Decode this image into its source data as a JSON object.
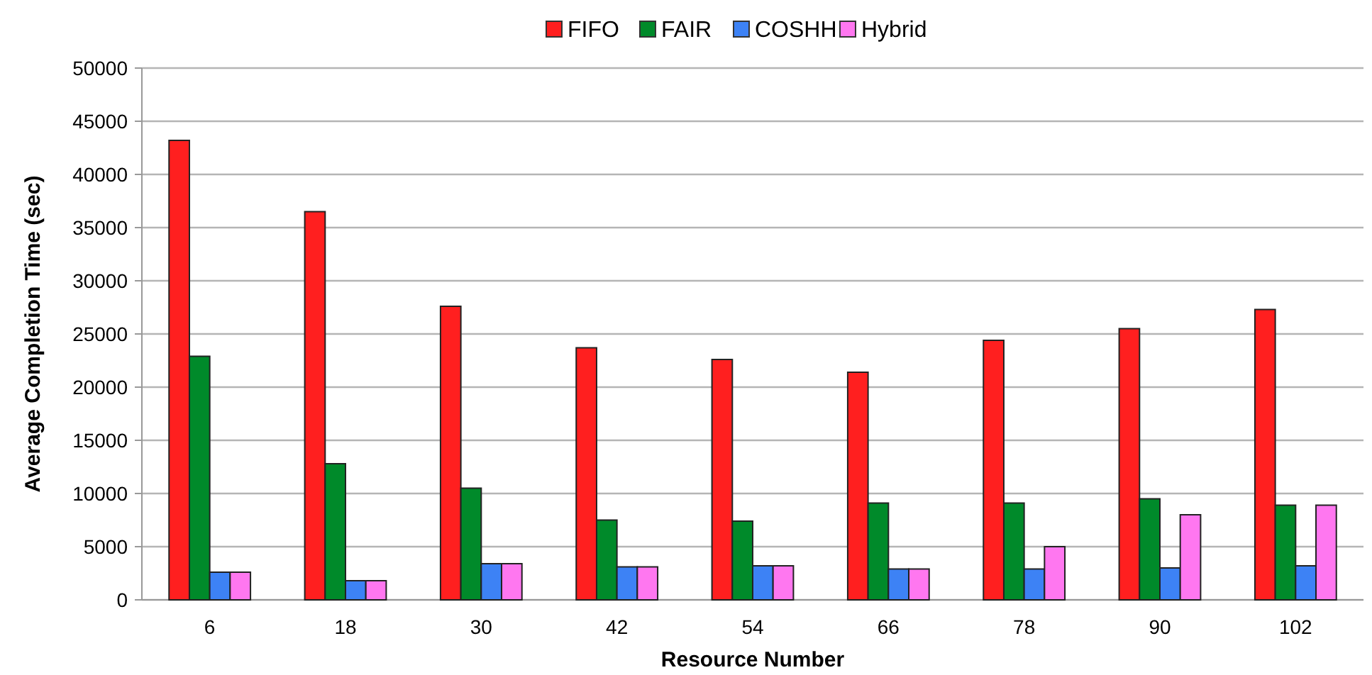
{
  "chart_data": {
    "type": "bar",
    "xlabel": "Resource Number",
    "ylabel": "Average Completion Time (sec)",
    "categories": [
      "6",
      "18",
      "30",
      "42",
      "54",
      "66",
      "78",
      "90",
      "102"
    ],
    "series": [
      {
        "name": "FIFO",
        "color": "#ff1f1f",
        "values": [
          43200,
          36500,
          27600,
          23700,
          22600,
          21400,
          24400,
          25500,
          27300
        ]
      },
      {
        "name": "FAIR",
        "color": "#008a2a",
        "values": [
          22900,
          12800,
          10500,
          7500,
          7400,
          9100,
          9100,
          9500,
          8900
        ]
      },
      {
        "name": "COSHH",
        "color": "#3d82f5",
        "values": [
          2600,
          1800,
          3400,
          3100,
          3200,
          2900,
          2900,
          3000,
          3200
        ]
      },
      {
        "name": "Hybrid",
        "color": "#ff77f0",
        "values": [
          2600,
          1800,
          3400,
          3100,
          3200,
          2900,
          5000,
          8000,
          8900
        ]
      }
    ],
    "ylim": [
      0,
      50000
    ],
    "yticks": [
      0,
      5000,
      10000,
      15000,
      20000,
      25000,
      30000,
      35000,
      40000,
      45000,
      50000
    ],
    "grid": "y",
    "legend": "top"
  }
}
